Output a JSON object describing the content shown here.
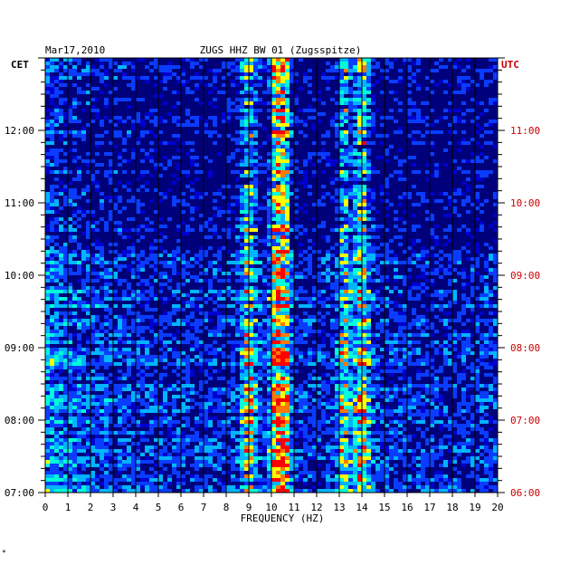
{
  "chart_data": {
    "type": "heatmap",
    "date": "Mar17,2010",
    "title": "ZUGS HHZ BW 01 (Zugsspitze)",
    "xlabel": "FREQUENCY (HZ)",
    "left_axis_label": "CET",
    "right_axis_label": "UTC",
    "x_ticks": [
      "0",
      "1",
      "2",
      "3",
      "4",
      "5",
      "6",
      "7",
      "8",
      "9",
      "10",
      "11",
      "12",
      "13",
      "14",
      "15",
      "16",
      "17",
      "18",
      "19",
      "20"
    ],
    "xlim": [
      0,
      20
    ],
    "left_ticks": [
      {
        "label": "07:00",
        "hour": 7
      },
      {
        "label": "08:00",
        "hour": 8
      },
      {
        "label": "09:00",
        "hour": 9
      },
      {
        "label": "10:00",
        "hour": 10
      },
      {
        "label": "11:00",
        "hour": 11
      },
      {
        "label": "12:00",
        "hour": 12
      }
    ],
    "right_ticks": [
      {
        "label": "06:00",
        "hour": 7
      },
      {
        "label": "07:00",
        "hour": 8
      },
      {
        "label": "08:00",
        "hour": 9
      },
      {
        "label": "09:00",
        "hour": 10
      },
      {
        "label": "10:00",
        "hour": 11
      },
      {
        "label": "11:00",
        "hour": 12
      }
    ],
    "time_range_cet": [
      7.0,
      13.0
    ],
    "colormap": [
      "#00007a",
      "#0000d0",
      "#0a3cff",
      "#00b4ff",
      "#00ffd8",
      "#ffff00",
      "#ff7800",
      "#ff0000"
    ],
    "strong_bands_hz": [
      {
        "f": 9.0,
        "width": 0.35,
        "level": 0.55
      },
      {
        "f": 10.2,
        "width": 0.25,
        "level": 0.75
      },
      {
        "f": 10.6,
        "width": 0.25,
        "level": 0.7
      },
      {
        "f": 13.2,
        "width": 0.3,
        "level": 0.45
      },
      {
        "f": 14.0,
        "width": 0.35,
        "level": 0.6
      }
    ],
    "grid": true
  },
  "corner_mark": "*"
}
